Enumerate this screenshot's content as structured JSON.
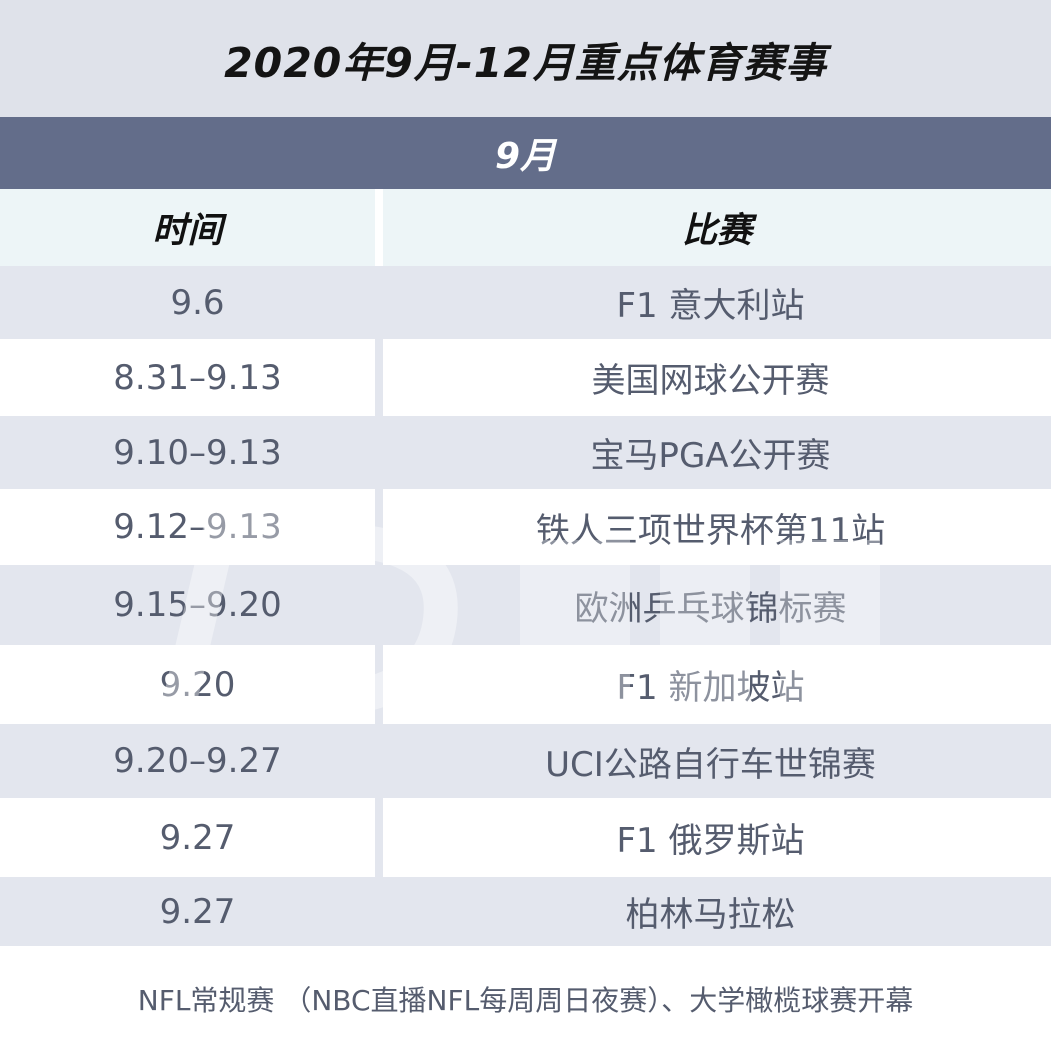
{
  "title": "2020年9月-12月重点体育赛事",
  "month": "9月",
  "header": {
    "time": "时间",
    "event": "比赛"
  },
  "rows": [
    {
      "time": "9.6",
      "event": "F1 意大利站"
    },
    {
      "time": "8.31–9.13",
      "event": "美国网球公开赛"
    },
    {
      "time": "9.10–9.13",
      "event": "宝马PGA公开赛"
    },
    {
      "time": "9.12–9.13",
      "event": "铁人三项世界杯第11站"
    },
    {
      "time": "9.15–9.20",
      "event": "欧洲乒乓球锦标赛"
    },
    {
      "time": "9.20",
      "event": "F1 新加坡站"
    },
    {
      "time": "9.20–9.27",
      "event": "UCI公路自行车世锦赛"
    },
    {
      "time": "9.27",
      "event": "F1 俄罗斯站"
    },
    {
      "time": "9.27",
      "event": "柏林马拉松"
    }
  ],
  "footer": "NFL常规赛 （NBC直播NFL每周周日夜赛）、大学橄榄球赛开幕",
  "colors": {
    "title_bg": "#dfe2ea",
    "month_bg": "#636d8a",
    "header_bg": "#edf5f7",
    "row_alt_bg": "#e3e6ee",
    "text": "#555c6e"
  }
}
